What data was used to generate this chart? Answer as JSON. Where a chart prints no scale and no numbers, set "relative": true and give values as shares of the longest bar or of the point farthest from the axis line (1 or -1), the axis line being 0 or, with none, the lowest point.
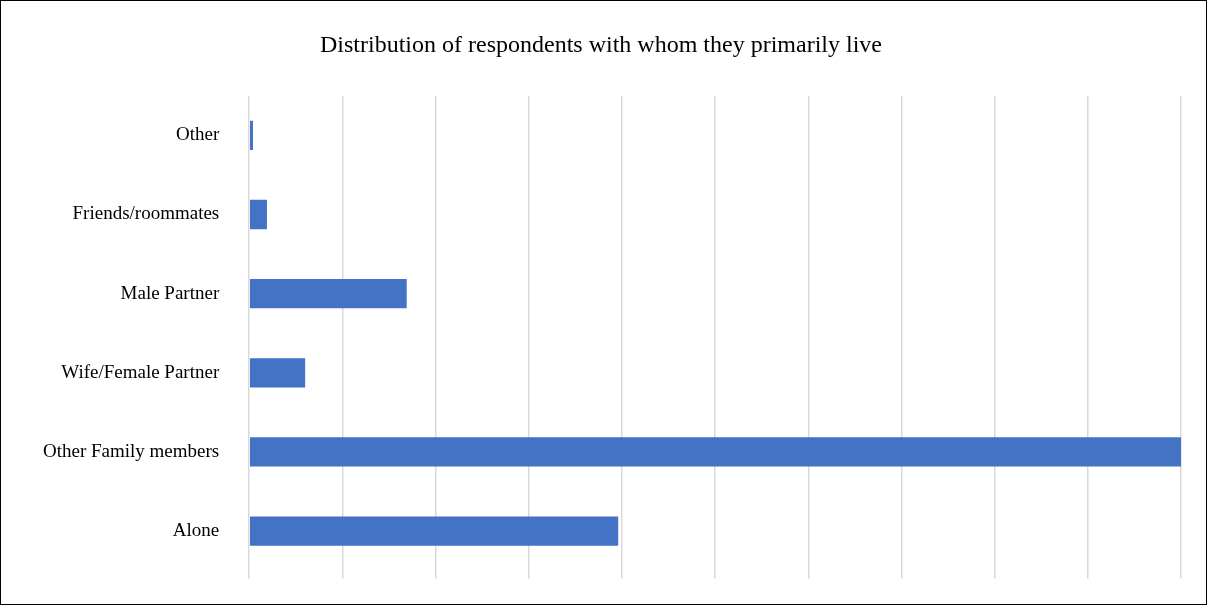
{
  "chart_data": {
    "type": "bar",
    "orientation": "horizontal",
    "relative": true,
    "title": "Distribution of respondents with whom they primarily live",
    "categories": [
      "Other",
      "Friends/roommates",
      "Male Partner",
      "Wife/Female Partner",
      "Other Family members",
      "Alone"
    ],
    "values": [
      0.004,
      0.019,
      0.169,
      0.06,
      1,
      0.396
    ],
    "color": "#4472c4",
    "grid": "x",
    "legend": false
  }
}
